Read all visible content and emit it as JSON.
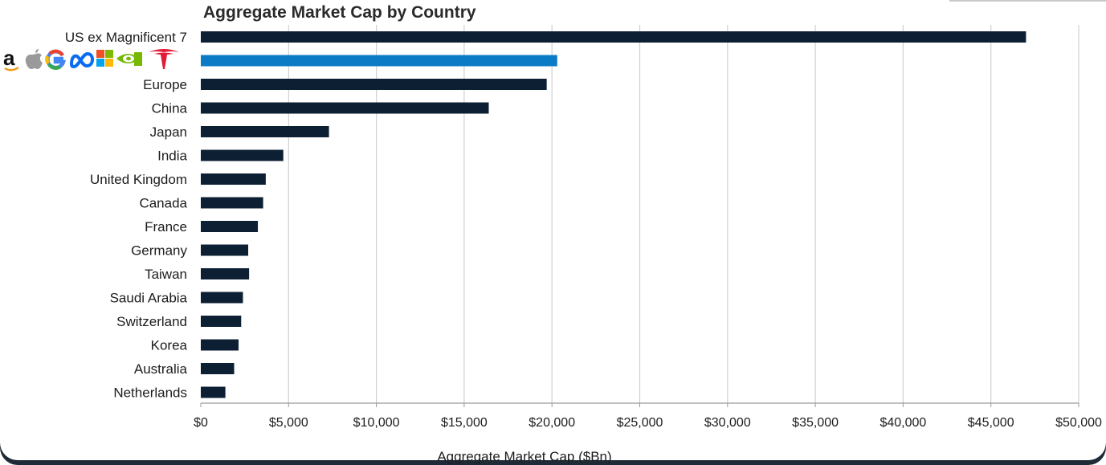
{
  "chart_data": {
    "type": "bar",
    "orientation": "horizontal",
    "title": "Aggregate Market Cap by Country",
    "xlabel": "Aggregate Market Cap ($Bn)",
    "ylabel": "",
    "xlim": [
      0,
      50000
    ],
    "xticks": [
      0,
      5000,
      10000,
      15000,
      20000,
      25000,
      30000,
      35000,
      40000,
      45000,
      50000
    ],
    "xtick_labels": [
      "$0",
      "$5,000",
      "$10,000",
      "$15,000",
      "$20,000",
      "$25,000",
      "$30,000",
      "$35,000",
      "$40,000",
      "$45,000",
      "$50,000"
    ],
    "grid": "vertical",
    "legend": "none",
    "categories": [
      "US ex Magnificent 7",
      "",
      "Europe",
      "China",
      "Japan",
      "India",
      "United Kingdom",
      "Canada",
      "France",
      "Germany",
      "Taiwan",
      "Saudi Arabia",
      "Switzerland",
      "Korea",
      "Australia",
      "Netherlands"
    ],
    "values": [
      47000,
      20300,
      19700,
      16400,
      7300,
      4700,
      3700,
      3550,
      3250,
      2700,
      2750,
      2400,
      2300,
      2150,
      1900,
      1400
    ],
    "highlight_index": 1,
    "highlight_label_logos": [
      "amazon-logo",
      "apple-logo",
      "google-logo",
      "meta-logo",
      "microsoft-logo",
      "nvidia-logo",
      "tesla-logo"
    ],
    "colors": {
      "bar": "#0d2033",
      "highlight": "#0b7bc6",
      "grid": "#d0d0d0",
      "axis": "#9a9a9a"
    }
  }
}
